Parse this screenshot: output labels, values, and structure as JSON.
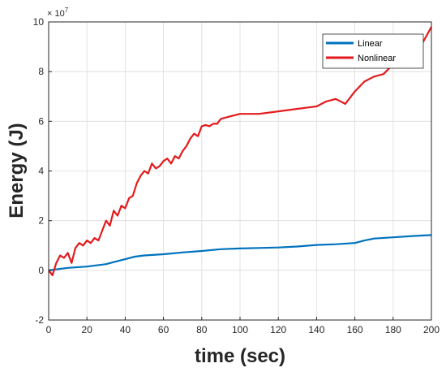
{
  "chart_data": {
    "type": "line",
    "title": "",
    "xlabel": "time (sec)",
    "ylabel": "Energy (J)",
    "y_exponent_label": "× 10",
    "y_exponent_power": "7",
    "xlim": [
      0,
      200
    ],
    "ylim": [
      -2,
      10
    ],
    "y_scale_factor": 10000000,
    "grid": true,
    "legend_position": "top-right",
    "x_ticks": [
      0,
      20,
      40,
      60,
      80,
      100,
      120,
      140,
      160,
      180,
      200
    ],
    "x_tick_labels": [
      "0",
      "20",
      "40",
      "60",
      "80",
      "100",
      "120",
      "140",
      "160",
      "180",
      "200"
    ],
    "y_ticks": [
      -2,
      0,
      2,
      4,
      6,
      8,
      10
    ],
    "y_tick_labels": [
      "-2",
      "0",
      "2",
      "4",
      "6",
      "8",
      "10"
    ],
    "series": [
      {
        "name": "Linear",
        "color": "#0072BD",
        "x": [
          0,
          5,
          10,
          20,
          25,
          30,
          35,
          40,
          45,
          50,
          60,
          70,
          80,
          90,
          100,
          110,
          120,
          130,
          140,
          150,
          160,
          165,
          170,
          180,
          190,
          200
        ],
        "y": [
          0,
          0.05,
          0.1,
          0.15,
          0.2,
          0.25,
          0.35,
          0.45,
          0.55,
          0.6,
          0.65,
          0.72,
          0.78,
          0.85,
          0.88,
          0.9,
          0.92,
          0.96,
          1.02,
          1.05,
          1.1,
          1.2,
          1.28,
          1.33,
          1.38,
          1.42
        ]
      },
      {
        "name": "Nonlinear",
        "color": "#E31A1C",
        "x": [
          0,
          2,
          4,
          6,
          8,
          10,
          12,
          14,
          16,
          18,
          20,
          22,
          24,
          26,
          28,
          30,
          32,
          34,
          36,
          38,
          40,
          42,
          44,
          46,
          48,
          50,
          52,
          54,
          56,
          58,
          60,
          62,
          64,
          66,
          68,
          70,
          72,
          74,
          76,
          78,
          80,
          82,
          84,
          86,
          88,
          90,
          95,
          100,
          110,
          120,
          130,
          140,
          145,
          150,
          155,
          160,
          165,
          170,
          175,
          180,
          185,
          190,
          195,
          200
        ],
        "y": [
          0,
          -0.2,
          0.3,
          0.6,
          0.5,
          0.7,
          0.3,
          0.9,
          1.1,
          1.0,
          1.2,
          1.1,
          1.3,
          1.2,
          1.6,
          2.0,
          1.8,
          2.4,
          2.2,
          2.6,
          2.5,
          2.9,
          3.0,
          3.5,
          3.8,
          4.0,
          3.9,
          4.3,
          4.1,
          4.2,
          4.4,
          4.5,
          4.3,
          4.6,
          4.5,
          4.8,
          5.0,
          5.3,
          5.5,
          5.4,
          5.8,
          5.85,
          5.8,
          5.9,
          5.9,
          6.1,
          6.2,
          6.3,
          6.3,
          6.4,
          6.5,
          6.6,
          6.8,
          6.9,
          6.7,
          7.2,
          7.6,
          7.8,
          7.9,
          8.3,
          8.2,
          8.8,
          9.1,
          9.8
        ]
      }
    ]
  }
}
